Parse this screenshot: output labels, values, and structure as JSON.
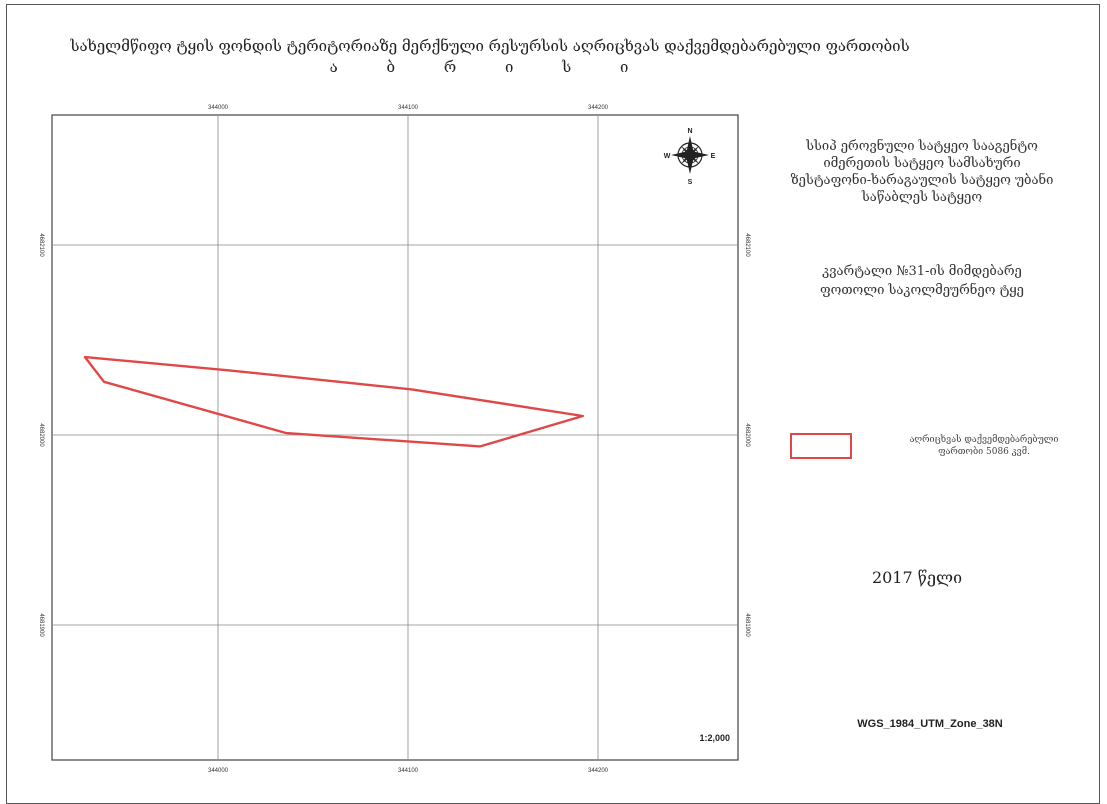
{
  "title": {
    "line1": "სახელმწიფო ტყის ფონდის ტერიტორიაზე მერქნული რესურსის აღრიცხვას დაქვემდებარებული ფართობის",
    "line2": "ა ბ რ ი ს ი"
  },
  "agency": {
    "line1": "სსიპ ეროვნული სატყეო სააგენტო",
    "line2": "იმერეთის სატყეო სამსახური",
    "line3": "ზესტაფონი-ხარაგაულის სატყეო უბანი",
    "line4": "საწაბლეს სატყეო"
  },
  "block": {
    "line1": "კვარტალი №31-ის მიმდებარე",
    "line2": "ფოთოლი საკოლმეურნეო ტყე"
  },
  "legend": {
    "label_line1": "აღრიცხვას დაქვემდებარებული",
    "label_line2": "ფართობი 5086 კვმ.",
    "color": "#e04848"
  },
  "year_label": "2017 წელი",
  "projection_label": "WGS_1984_UTM_Zone_38N",
  "scale_label": "1:2,000",
  "north_arrow": {
    "icon": "compass-rose-icon",
    "n": "N",
    "s": "S",
    "e": "E",
    "w": "W"
  },
  "grid": {
    "x_ticks": [
      "344000",
      "344100",
      "344200"
    ],
    "y_ticks": [
      "4682100",
      "4682000",
      "4681900"
    ]
  },
  "area": {
    "name": "parcel",
    "outline_color": "#e04848",
    "vertices": [
      [
        343930,
        4682041
      ],
      [
        343940,
        4682028
      ],
      [
        344036,
        4682001
      ],
      [
        344138,
        4681994
      ],
      [
        344192,
        4682010
      ],
      [
        344102,
        4682024
      ],
      [
        344006,
        4682034
      ]
    ]
  }
}
